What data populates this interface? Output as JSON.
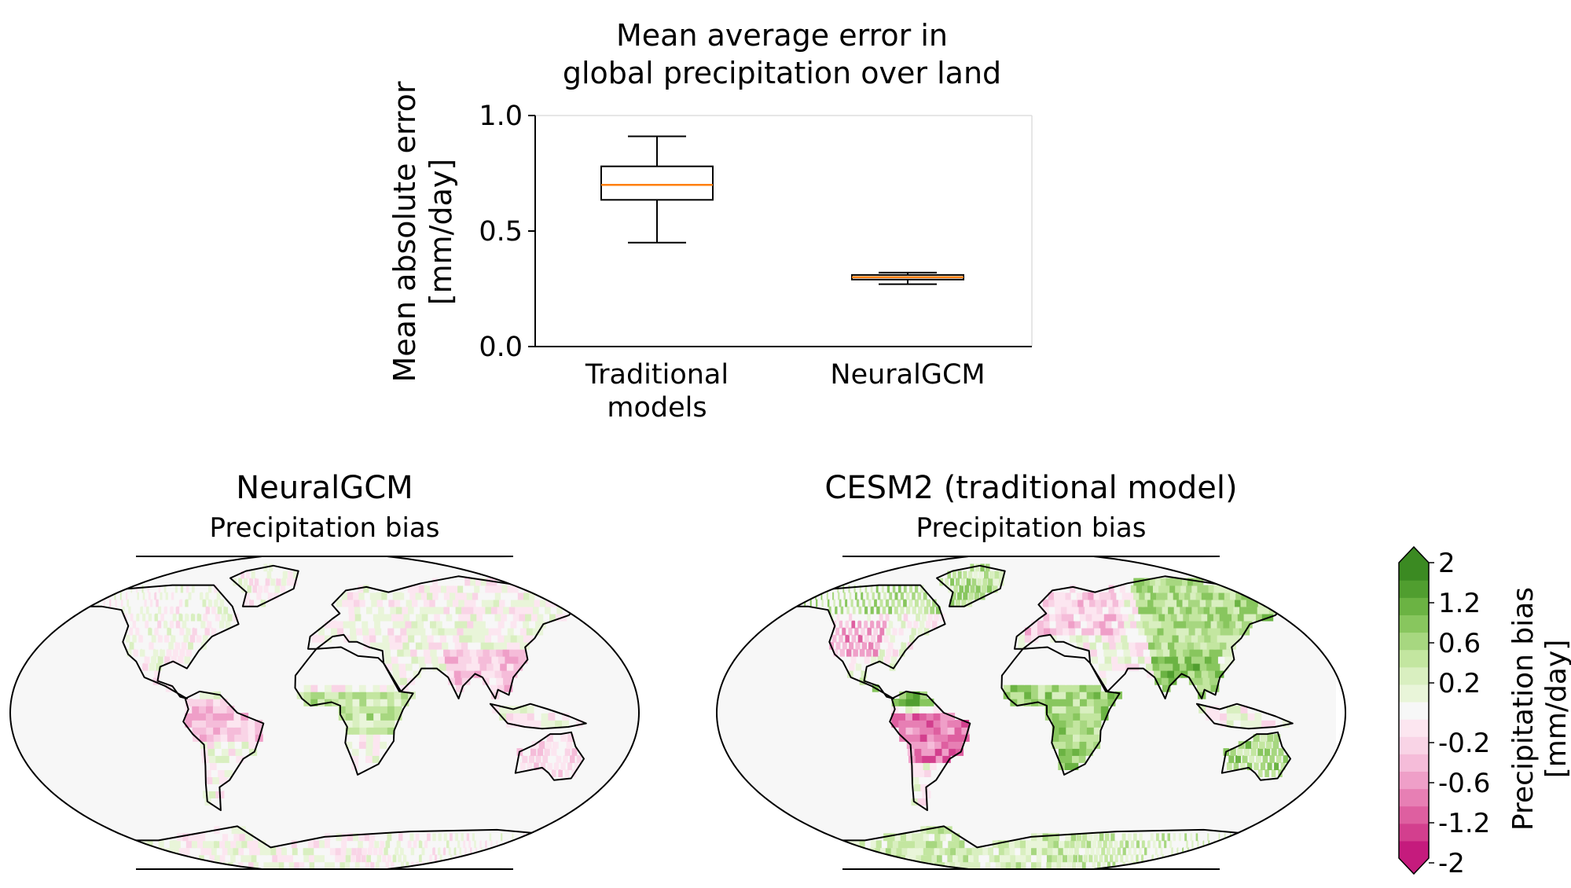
{
  "chart_data": [
    {
      "type": "box",
      "title": [
        "Mean average error in",
        "global precipitation over land"
      ],
      "ylabel": [
        "Mean absolute error",
        "[mm/day]"
      ],
      "xlabel": "",
      "ylim": [
        0,
        1.0
      ],
      "yticks": [
        "0.0",
        "0.5",
        "1.0"
      ],
      "categories": [
        [
          "Traditional",
          "models"
        ],
        [
          "NeuralGCM"
        ]
      ],
      "boxes": [
        {
          "whisker_low": 0.45,
          "q1": 0.635,
          "median": 0.7,
          "q3": 0.78,
          "whisker_high": 0.91
        },
        {
          "whisker_low": 0.27,
          "q1": 0.29,
          "median": 0.3,
          "q3": 0.31,
          "whisker_high": 0.32
        }
      ],
      "box_color": "#000000",
      "median_color": "#ff7f0e",
      "grid": false
    },
    {
      "type": "heatmap",
      "title": "NeuralGCM",
      "subtitle": "Precipitation bias",
      "projection": "robinson"
    },
    {
      "type": "heatmap",
      "title": "CESM2 (traditional model)",
      "subtitle": "Precipitation bias",
      "projection": "robinson"
    },
    {
      "type": "colorbar",
      "label": [
        "Precipitation bias",
        "[mm/day]"
      ],
      "ticks": [
        "2",
        "1.2",
        "0.6",
        "0.2",
        "-0.2",
        "-0.6",
        "-1.2",
        "-2"
      ],
      "range": [
        -2,
        2
      ],
      "colors": [
        "#c51b7d",
        "#d33f8e",
        "#de5fa0",
        "#e77fb4",
        "#ef9fc8",
        "#f5bcd9",
        "#f9d4e6",
        "#fce6f0",
        "#f7f7f7",
        "#e9f5d9",
        "#d9efc0",
        "#c3e6a0",
        "#a7d780",
        "#88c65e",
        "#6bb343",
        "#509e2f",
        "#3b8a22"
      ]
    }
  ]
}
